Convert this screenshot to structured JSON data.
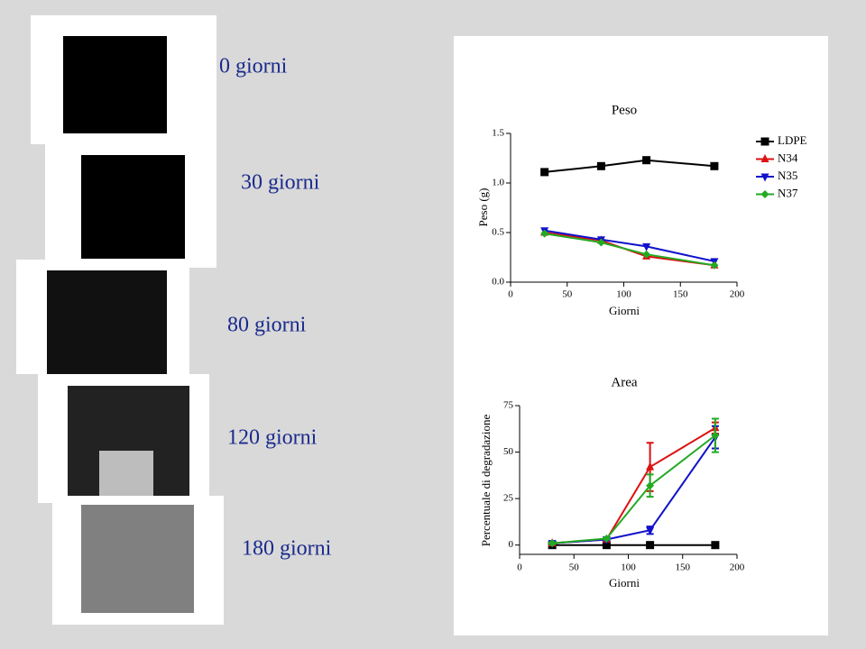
{
  "images": [
    {
      "label": "0 giorni"
    },
    {
      "label": "30 giorni"
    },
    {
      "label": "80 giorni"
    },
    {
      "label": "120 giorni"
    },
    {
      "label": "180 giorni"
    }
  ],
  "chart_data": [
    {
      "type": "line",
      "title": "Peso",
      "x_label": "Giorni",
      "y_label": "Peso (g)",
      "x": [
        30,
        80,
        120,
        180
      ],
      "xlim": [
        0,
        200
      ],
      "xticks": [
        0,
        50,
        100,
        150,
        200
      ],
      "ylim": [
        0,
        1.5
      ],
      "yticks": [
        {
          "value": 0,
          "label": "0.0"
        },
        {
          "value": 0.5,
          "label": "0.5"
        },
        {
          "value": 1,
          "label": "1.0"
        },
        {
          "value": 1.5,
          "label": "1.5"
        }
      ],
      "legend": "right",
      "series": [
        {
          "name": "LDPE",
          "color": "#000000",
          "marker": "square",
          "values": [
            1.11,
            1.17,
            1.23,
            1.17
          ]
        },
        {
          "name": "N34",
          "color": "#dd1111",
          "marker": "triangle-up",
          "values": [
            0.5,
            0.42,
            0.26,
            0.17
          ]
        },
        {
          "name": "N35",
          "color": "#1111cc",
          "marker": "triangle-down",
          "values": [
            0.52,
            0.43,
            0.36,
            0.21
          ]
        },
        {
          "name": "N37",
          "color": "#22aa22",
          "marker": "diamond",
          "values": [
            0.49,
            0.4,
            0.28,
            0.17
          ]
        }
      ]
    },
    {
      "type": "line",
      "title": "Area",
      "x_label": "Giorni",
      "y_label": "Percentuale di degradazione",
      "x": [
        30,
        80,
        120,
        180
      ],
      "xlim": [
        0,
        200
      ],
      "xticks": [
        0,
        50,
        100,
        150,
        200
      ],
      "ylim": [
        -5,
        75
      ],
      "yticks": [
        0,
        25,
        50,
        75
      ],
      "series": [
        {
          "name": "LDPE",
          "color": "#000000",
          "marker": "square",
          "values": [
            0,
            0,
            0,
            0
          ],
          "errors": [
            0,
            0,
            0,
            0
          ]
        },
        {
          "name": "N34",
          "color": "#dd1111",
          "marker": "triangle-up",
          "values": [
            1,
            3,
            42,
            63
          ],
          "errors": [
            1,
            1,
            13,
            3
          ]
        },
        {
          "name": "N35",
          "color": "#1111cc",
          "marker": "triangle-down",
          "values": [
            1,
            3,
            8,
            58
          ],
          "errors": [
            0.5,
            0.5,
            2,
            6
          ]
        },
        {
          "name": "N37",
          "color": "#22aa22",
          "marker": "diamond",
          "values": [
            1,
            3.5,
            32,
            59
          ],
          "errors": [
            0.5,
            0.5,
            6,
            9
          ]
        }
      ]
    }
  ]
}
